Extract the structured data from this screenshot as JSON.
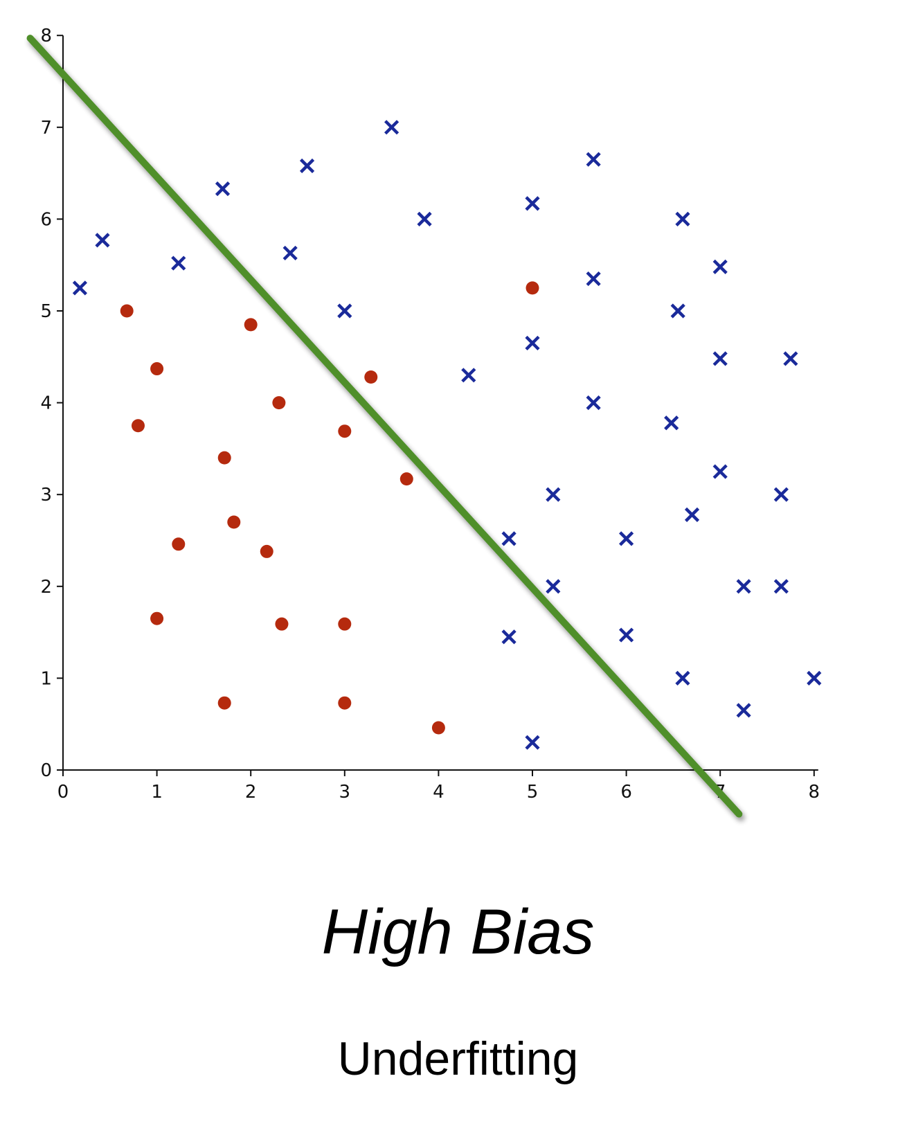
{
  "caption": {
    "title": "High Bias",
    "subtitle": "Underfitting"
  },
  "chart_data": {
    "type": "scatter",
    "xlim": [
      0,
      8
    ],
    "ylim": [
      0,
      8
    ],
    "xticks": [
      "0",
      "1",
      "2",
      "3",
      "4",
      "5",
      "6",
      "7",
      "8"
    ],
    "yticks": [
      "0",
      "1",
      "2",
      "3",
      "4",
      "5",
      "6",
      "7",
      "8"
    ],
    "grid": false,
    "colors": {
      "circle": "#b52a0e",
      "cross": "#1a2a9a",
      "boundary": "#4f8f2a",
      "axis": "#111111"
    },
    "series": [
      {
        "marker": "circle",
        "points": [
          [
            0.68,
            5.0
          ],
          [
            1.0,
            4.37
          ],
          [
            0.8,
            3.75
          ],
          [
            2.0,
            4.85
          ],
          [
            2.3,
            4.0
          ],
          [
            3.28,
            4.28
          ],
          [
            3.0,
            3.69
          ],
          [
            1.72,
            3.4
          ],
          [
            3.66,
            3.17
          ],
          [
            1.23,
            2.46
          ],
          [
            1.82,
            2.7
          ],
          [
            2.17,
            2.38
          ],
          [
            1.0,
            1.65
          ],
          [
            2.33,
            1.59
          ],
          [
            3.0,
            1.59
          ],
          [
            1.72,
            0.73
          ],
          [
            3.0,
            0.73
          ],
          [
            4.0,
            0.46
          ],
          [
            5.0,
            5.25
          ]
        ]
      },
      {
        "marker": "cross",
        "points": [
          [
            0.18,
            5.25
          ],
          [
            0.42,
            5.77
          ],
          [
            1.23,
            5.52
          ],
          [
            1.7,
            6.33
          ],
          [
            2.6,
            6.58
          ],
          [
            2.42,
            5.63
          ],
          [
            3.5,
            7.0
          ],
          [
            3.85,
            6.0
          ],
          [
            3.0,
            5.0
          ],
          [
            5.0,
            6.17
          ],
          [
            5.65,
            6.65
          ],
          [
            6.6,
            6.0
          ],
          [
            7.0,
            5.48
          ],
          [
            5.65,
            5.35
          ],
          [
            6.55,
            5.0
          ],
          [
            5.0,
            4.65
          ],
          [
            4.32,
            4.3
          ],
          [
            7.0,
            4.48
          ],
          [
            7.75,
            4.48
          ],
          [
            5.65,
            4.0
          ],
          [
            6.48,
            3.78
          ],
          [
            7.0,
            3.25
          ],
          [
            5.22,
            3.0
          ],
          [
            7.65,
            3.0
          ],
          [
            6.7,
            2.78
          ],
          [
            4.75,
            2.52
          ],
          [
            6.0,
            2.52
          ],
          [
            5.22,
            2.0
          ],
          [
            7.25,
            2.0
          ],
          [
            7.65,
            2.0
          ],
          [
            4.75,
            1.45
          ],
          [
            6.0,
            1.47
          ],
          [
            6.6,
            1.0
          ],
          [
            8.0,
            1.0
          ],
          [
            7.25,
            0.65
          ],
          [
            5.0,
            0.3
          ]
        ]
      }
    ],
    "decision_boundary": {
      "from": [
        -0.35,
        7.97
      ],
      "to": [
        7.2,
        -0.48
      ]
    }
  }
}
